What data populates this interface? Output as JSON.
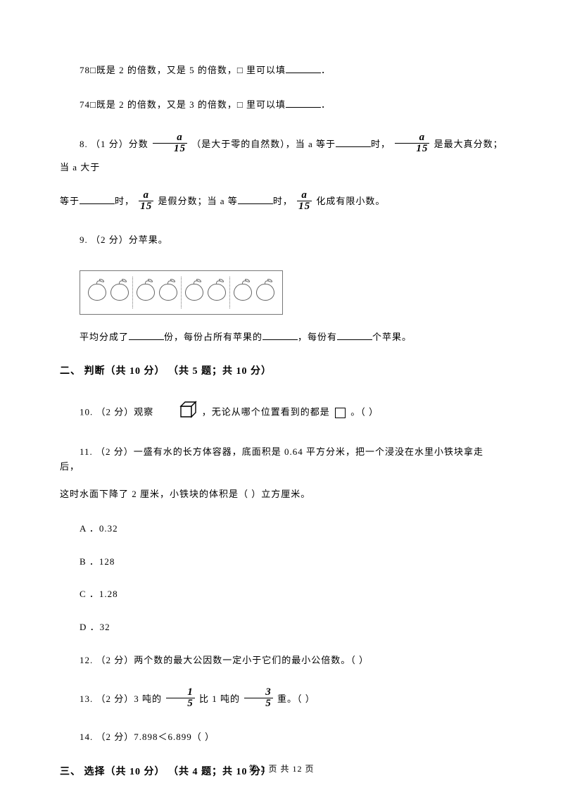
{
  "q7b": {
    "prefix": "78□既是 2 的倍数，又是 5 的倍数，□ 里可以填",
    "suffix": "．"
  },
  "q7c": {
    "prefix": "74□既是 2 的倍数，又是 3 的倍数，□ 里可以填",
    "suffix": "．"
  },
  "q8": {
    "label": "8.  （1 分）分数 ",
    "frac_num": "a",
    "frac_den": "15",
    "p1a": " （是大于零的自然数），当 a 等于",
    "p1b": "时，",
    "p1c": " 是最大真分数；当 a 大于",
    "p2a": "等于",
    "p2b": "时，",
    "p2c": " 是假分数；当 a 等",
    "p2d": "时，",
    "p2e": " 化成有限小数。"
  },
  "q9": {
    "label": "9.  （2 分）分苹果。",
    "groups": 4,
    "per_group": 2,
    "s1": "平均分成了",
    "s2": "份，每份占所有苹果的",
    "s3": "，每份有",
    "s4": "个苹果。"
  },
  "sec2": "二、 判断（共 10 分） （共 5 题；共 10 分）",
  "q10": {
    "a": "10.  （2 分）观察 ",
    "b": " ，无论从哪个位置看到的都是 ",
    "c": " 。（     ）"
  },
  "q11": {
    "l1": "11.  （2 分）一盛有水的长方体容器，底面积是 0.64 平方分米，把一个浸没在水里小铁块拿走后，",
    "l2": "这时水面下降了 2 厘米，小铁块的体积是（     ）立方厘米。",
    "a": "A ．0.32",
    "b": "B ．128",
    "c": "C ．1.28",
    "d": "D ．32"
  },
  "q12": "12.  （2 分）两个数的最大公因数一定小于它们的最小公倍数。（     ）",
  "q13": {
    "a": "13.  （2 分）3 吨的 ",
    "n1": "1",
    "d1": "5",
    "b": " 比 1 吨的 ",
    "n2": "3",
    "d2": "5",
    "c": " 重。（     ）"
  },
  "q14": "14.  （2 分）7.898＜6.899（     ）",
  "sec3": "三、 选择（共 10 分） （共 4 题；共 10 分）",
  "footer": "第 2 页 共 12 页"
}
